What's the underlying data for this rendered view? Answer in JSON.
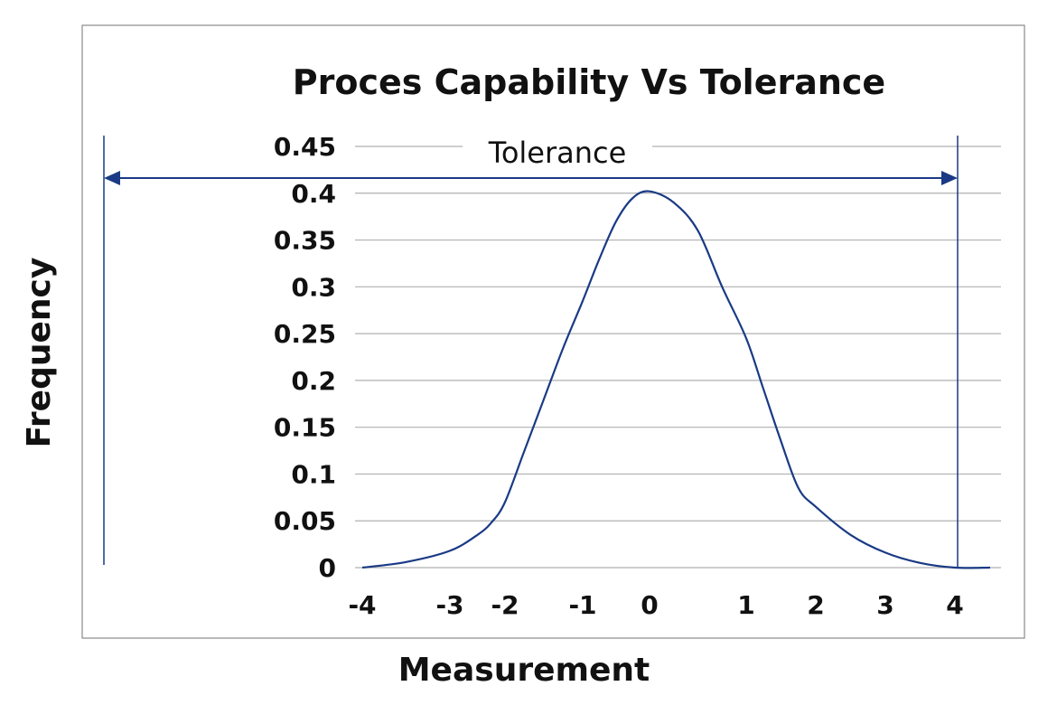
{
  "chart_data": {
    "type": "line",
    "title": "Proces Capability Vs Tolerance",
    "xlabel": "Measurement",
    "ylabel": "Frequency",
    "y_ticks": [
      "0",
      "0.05",
      "0.1",
      "0.15",
      "0.2",
      "0.25",
      "0.3",
      "0.35",
      "0.4",
      "0.45"
    ],
    "x_ticks": [
      {
        "label": "-4",
        "value": -4
      },
      {
        "label": "-3",
        "value": -3
      },
      {
        "label": "-2",
        "value": -2
      },
      {
        "label": "-1",
        "value": -1
      },
      {
        "label": "0",
        "value": 0
      },
      {
        "label": "1",
        "value": 1
      },
      {
        "label": "2",
        "value": 2
      },
      {
        "label": "3",
        "value": 3
      },
      {
        "label": "4",
        "value": 4
      }
    ],
    "ylim": [
      0,
      0.45
    ],
    "grid": true,
    "series": [
      {
        "x": [
          -4,
          -3.5,
          -3,
          -2.5,
          -2.25,
          -2,
          -1.75,
          -1.5,
          -1.25,
          -1,
          -0.75,
          -0.5,
          -0.25,
          0,
          0.25,
          0.5,
          0.75,
          1,
          1.25,
          1.5,
          1.75,
          2,
          2.5,
          3,
          3.5,
          4,
          4.5
        ],
        "y": [
          0.0,
          0.006,
          0.018,
          0.035,
          0.048,
          0.07,
          0.125,
          0.18,
          0.235,
          0.285,
          0.33,
          0.37,
          0.395,
          0.402,
          0.39,
          0.36,
          0.3,
          0.245,
          0.19,
          0.135,
          0.085,
          0.065,
          0.035,
          0.016,
          0.005,
          0.0,
          0.0
        ],
        "color": "#1a3a85"
      }
    ],
    "annotation": {
      "label": "Tolerance",
      "color": "#1a3a85"
    }
  }
}
